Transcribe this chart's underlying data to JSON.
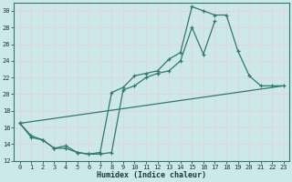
{
  "xlabel": "Humidex (Indice chaleur)",
  "bg_color": "#cce8e8",
  "grid_color": "#d4ecec",
  "line_color": "#2d7a6e",
  "xlim": [
    -0.5,
    23.5
  ],
  "ylim": [
    12,
    31
  ],
  "yticks": [
    12,
    14,
    16,
    18,
    20,
    22,
    24,
    26,
    28,
    30
  ],
  "xticks": [
    0,
    1,
    2,
    3,
    4,
    5,
    6,
    7,
    8,
    9,
    10,
    11,
    12,
    13,
    14,
    15,
    16,
    17,
    18,
    19,
    20,
    21,
    22,
    23
  ],
  "series": [
    {
      "x": [
        0,
        1,
        2,
        3,
        4,
        5,
        6,
        7,
        8,
        9,
        10,
        11,
        12,
        13,
        14,
        15,
        16,
        17,
        18,
        19,
        20,
        21,
        22,
        23
      ],
      "y": [
        16.5,
        15.0,
        14.5,
        13.5,
        13.5,
        13.0,
        12.8,
        13.0,
        20.2,
        20.8,
        22.2,
        22.5,
        22.8,
        24.2,
        25.0,
        30.5,
        30.0,
        29.5,
        29.5,
        25.2,
        22.2,
        21.0,
        21.0,
        21.0
      ],
      "marker": true
    },
    {
      "x": [
        0,
        1,
        2,
        3,
        4,
        5,
        6,
        7,
        8,
        9,
        10,
        11,
        12,
        13,
        14,
        15,
        16,
        17,
        18,
        19,
        20,
        21,
        22,
        23
      ],
      "y": [
        16.5,
        14.8,
        14.5,
        13.5,
        13.8,
        13.0,
        12.8,
        12.8,
        13.0,
        20.5,
        21.0,
        22.0,
        22.5,
        22.8,
        24.0,
        28.0,
        24.8,
        28.8,
        null,
        null,
        null,
        null,
        null,
        null
      ],
      "marker": true
    },
    {
      "x": [
        0,
        23
      ],
      "y": [
        16.5,
        21.0
      ],
      "marker": false
    }
  ]
}
